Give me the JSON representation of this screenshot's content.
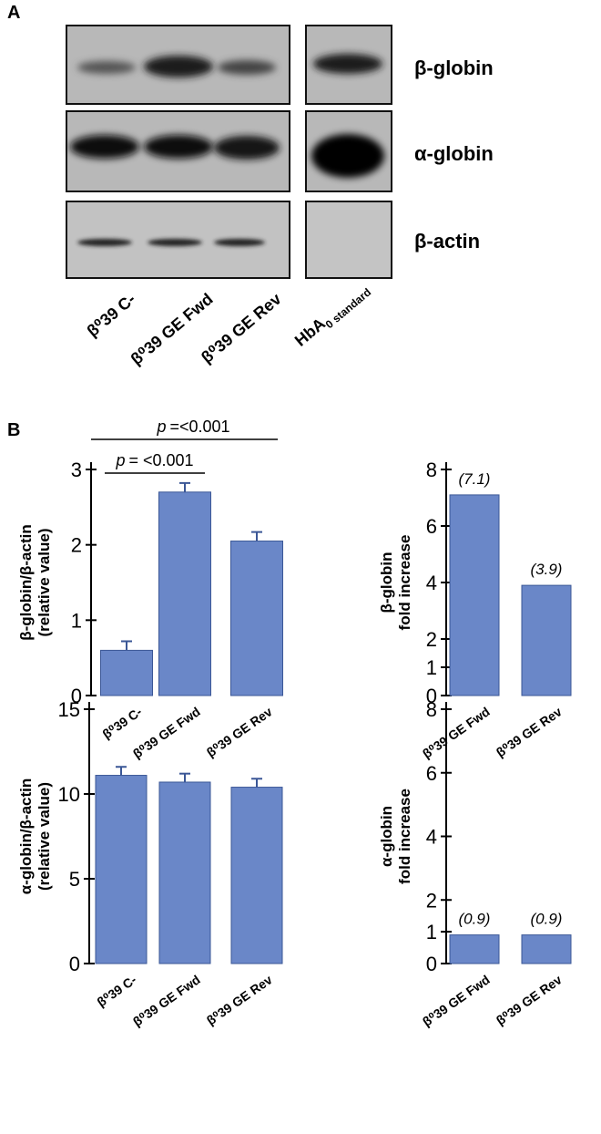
{
  "panel_a": {
    "label": "A",
    "blot_labels": [
      "β-globin",
      "α-globin",
      "β-actin"
    ],
    "lanes": [
      "β⁰39 C-",
      "β⁰39 GE Fwd",
      "β⁰39 GE Rev",
      {
        "main": "HbA",
        "sub": "0 standard"
      }
    ]
  },
  "panel_b": {
    "label": "B"
  },
  "chart_data": [
    {
      "type": "bar",
      "ylabel": [
        "β-globin/β-actin",
        "(relative value)"
      ],
      "categories": [
        "β⁰39 C-",
        "β⁰39 GE Fwd",
        "β⁰39 GE Rev"
      ],
      "values": [
        0.6,
        2.7,
        2.05
      ],
      "errors": [
        0.12,
        0.12,
        0.12
      ],
      "color": "#6a87c8",
      "ylim": [
        0,
        3
      ],
      "yticks": [
        0,
        1,
        2,
        3
      ],
      "annotations": [
        {
          "italic": "p",
          "text": "=<0.001"
        },
        {
          "italic": "p",
          "text": "=  <0.001"
        }
      ]
    },
    {
      "type": "bar",
      "ylabel": [
        "β-globin",
        "fold increase"
      ],
      "categories": [
        "β⁰39 GE Fwd",
        "β⁰39 GE Rev"
      ],
      "values": [
        7.1,
        3.9
      ],
      "value_labels": [
        "(7.1)",
        "(3.9)"
      ],
      "color": "#6a87c8",
      "ylim": [
        0,
        8
      ],
      "yticks": [
        0,
        1,
        2,
        4,
        6,
        8
      ]
    },
    {
      "type": "bar",
      "ylabel": [
        "α-globin/β-actin",
        "(relative value)"
      ],
      "categories": [
        "β⁰39 C-",
        "β⁰39 GE Fwd",
        "β⁰39 GE Rev"
      ],
      "values": [
        11.1,
        10.7,
        10.4
      ],
      "errors": [
        0.5,
        0.5,
        0.5
      ],
      "color": "#6a87c8",
      "ylim": [
        0,
        15
      ],
      "yticks": [
        0,
        5,
        10,
        15
      ]
    },
    {
      "type": "bar",
      "ylabel": [
        "α-globin",
        "fold increase"
      ],
      "categories": [
        "β⁰39 GE Fwd",
        "β⁰39 GE Rev"
      ],
      "values": [
        0.9,
        0.9
      ],
      "value_labels": [
        "(0.9)",
        "(0.9)"
      ],
      "color": "#6a87c8",
      "ylim": [
        0,
        8
      ],
      "yticks": [
        0,
        1,
        2,
        4,
        6,
        8
      ]
    }
  ]
}
